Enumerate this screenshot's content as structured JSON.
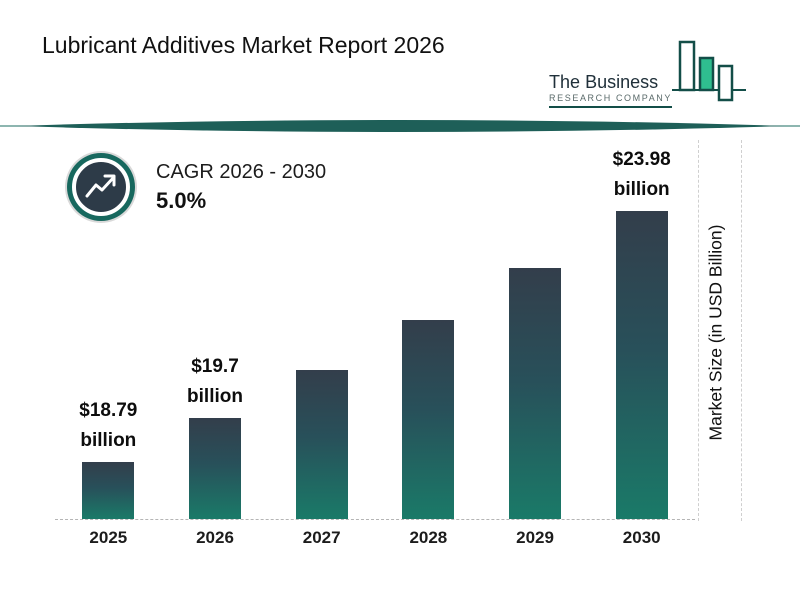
{
  "header": {
    "title": "Lubricant Additives Market Report 2026",
    "logo": {
      "line1": "The Business",
      "line2": "RESEARCH COMPANY"
    }
  },
  "chart_data": {
    "type": "bar",
    "title": "Lubricant Additives Market Report 2026",
    "categories": [
      "2025",
      "2026",
      "2027",
      "2028",
      "2029",
      "2030"
    ],
    "values": [
      18.79,
      19.7,
      20.69,
      21.72,
      22.81,
      23.98
    ],
    "unit": "USD billion",
    "xlabel": "",
    "ylabel": "Market Size (in USD Billion)",
    "ylim": [
      17.6,
      25.5
    ],
    "grid": "off",
    "legend": "none",
    "bar_labels": [
      [
        "$18.79",
        "billion"
      ],
      [
        "$19.7",
        "billion"
      ],
      null,
      null,
      null,
      [
        "$23.98",
        "billion"
      ]
    ],
    "annotations": {
      "cagr_label": "CAGR 2026 - 2030",
      "cagr_value": "5.0%"
    }
  },
  "colors": {
    "bar_gradient_top": "#333e4b",
    "bar_gradient_bottom": "#1a7a68",
    "accent_teal": "#17685e",
    "logo_dark_teal": "#134e48",
    "logo_green": "#2fbe8f",
    "text": "#1c1c1c"
  }
}
